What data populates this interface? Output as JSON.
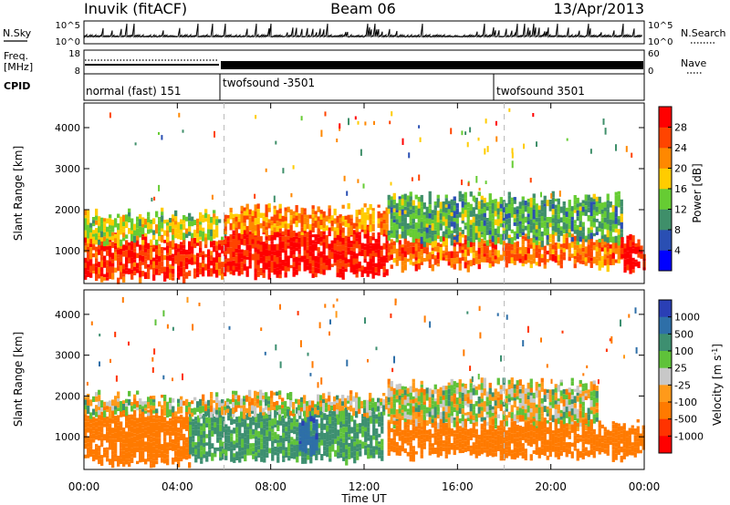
{
  "header": {
    "station": "Inuvik (fitACF)",
    "beam": "Beam 06",
    "date": "13/Apr/2013"
  },
  "strips": {
    "nsky": {
      "label": "N.Sky",
      "left_ticks": [
        "10^5",
        "10^0"
      ],
      "right_ticks": [
        "10^5",
        "10^0"
      ],
      "right_label": "N.Search",
      "right_label_line": "dotted"
    },
    "freq": {
      "label_line1": "Freq.",
      "label_line2": "[MHz]",
      "left_ticks": [
        "18",
        "8"
      ],
      "right_ticks": [
        "60",
        "0"
      ],
      "right_label": "Nave",
      "right_label_line": "dotted"
    },
    "cpid": {
      "label": "CPID",
      "segments": [
        {
          "label": "normal (fast) 151",
          "start_h": 0,
          "end_h": 6
        },
        {
          "label": "twofsound -3501",
          "start_h": 6,
          "end_h": 18
        },
        {
          "label": "twofsound 3501",
          "start_h": 18,
          "end_h": 24
        }
      ]
    }
  },
  "axes": {
    "x_ticks": [
      "00:00",
      "04:00",
      "08:00",
      "12:00",
      "16:00",
      "20:00",
      "00:00"
    ],
    "x_label": "Time UT",
    "y_ticks": [
      "1000",
      "2000",
      "3000",
      "4000"
    ],
    "y_label": "Slant Range [km]"
  },
  "colorbars": {
    "power": {
      "label": "Power [dB]",
      "ticks": [
        "28",
        "24",
        "20",
        "16",
        "12",
        "8",
        "4"
      ],
      "colors": [
        "#0000ff",
        "#2a4fb3",
        "#3f8f6a",
        "#66cc33",
        "#ffcc00",
        "#ff8800",
        "#ff4400",
        "#ff0000"
      ]
    },
    "velocity": {
      "label": "Velocity [m s",
      "label_sup": "-1",
      "label_end": "]",
      "ticks": [
        "1000",
        "500",
        "100",
        "25",
        "-25",
        "-100",
        "-500",
        "-1000"
      ],
      "colors": [
        "#2a3fb5",
        "#2e6fa8",
        "#3d8f70",
        "#5fc23a",
        "#c8c8c8",
        "#ff9a1a",
        "#ff7a00",
        "#ff3300",
        "#ff0000"
      ]
    }
  },
  "chart_data": [
    {
      "type": "heatmap",
      "title": "Power",
      "xlabel": "Time UT",
      "ylabel": "Slant Range [km]",
      "xlim": [
        0,
        24
      ],
      "ylim": [
        200,
        4600
      ],
      "colorbar_label": "Power [dB]",
      "colorbar_range": [
        0,
        32
      ],
      "regions": [
        {
          "t0": 0.0,
          "t1": 6.0,
          "r0": 400,
          "r1": 1300,
          "value": 28
        },
        {
          "t0": 0.0,
          "t1": 6.0,
          "r0": 1300,
          "r1": 1900,
          "value": 16
        },
        {
          "t0": 6.0,
          "t1": 13.0,
          "r0": 500,
          "r1": 1500,
          "value": 30
        },
        {
          "t0": 6.0,
          "t1": 13.0,
          "r0": 1500,
          "r1": 2000,
          "value": 22
        },
        {
          "t0": 13.0,
          "t1": 23.0,
          "r0": 700,
          "r1": 1300,
          "value": 24
        },
        {
          "t0": 13.0,
          "t1": 23.0,
          "r0": 1300,
          "r1": 2300,
          "value": 12
        },
        {
          "t0": 23.0,
          "t1": 24.0,
          "r0": 600,
          "r1": 1300,
          "value": 30
        }
      ]
    },
    {
      "type": "heatmap",
      "title": "Velocity",
      "xlabel": "Time UT",
      "ylabel": "Slant Range [km]",
      "xlim": [
        0,
        24
      ],
      "ylim": [
        200,
        4600
      ],
      "colorbar_label": "Velocity [m s-1]",
      "colorbar_range": [
        -1000,
        1000
      ],
      "regions": [
        {
          "t0": 0.0,
          "t1": 4.5,
          "r0": 400,
          "r1": 1600,
          "value": -300
        },
        {
          "t0": 4.5,
          "t1": 12.8,
          "r0": 500,
          "r1": 1600,
          "value": 150
        },
        {
          "t0": 9.2,
          "t1": 10.0,
          "r0": 700,
          "r1": 1500,
          "value": 900
        },
        {
          "t0": 0.0,
          "t1": 13.0,
          "r0": 1600,
          "r1": 2000,
          "value": 0
        },
        {
          "t0": 13.0,
          "t1": 22.0,
          "r0": 1300,
          "r1": 2300,
          "value": 0
        },
        {
          "t0": 13.0,
          "t1": 24.0,
          "r0": 600,
          "r1": 1300,
          "value": -300
        }
      ]
    }
  ]
}
